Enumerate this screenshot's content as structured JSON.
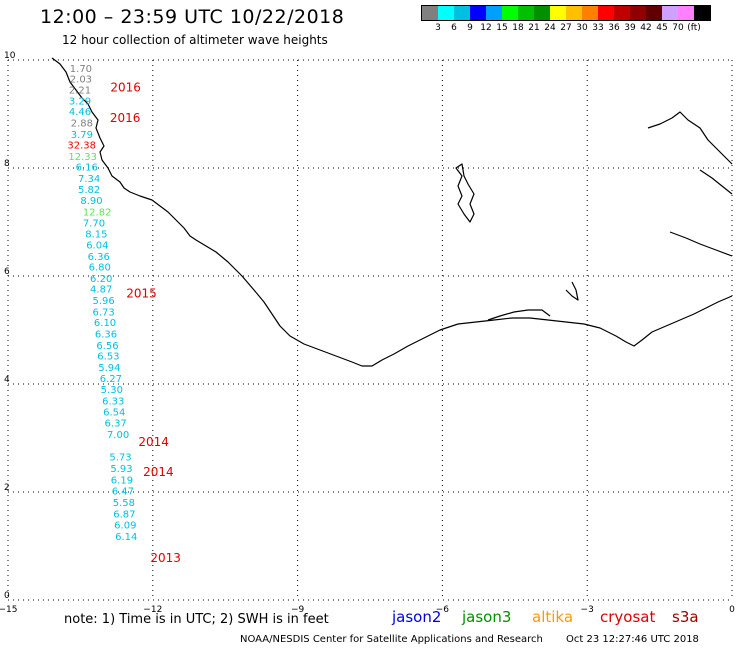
{
  "title": "12:00 – 23:59 UTC 10/22/2018",
  "subtitle": "12 hour collection of altimeter wave heights",
  "color_scale": {
    "colors": [
      "#808080",
      "#00ffff",
      "#00c0e0",
      "#0000ff",
      "#00a0ff",
      "#00ff00",
      "#00c000",
      "#009000",
      "#ffff00",
      "#ffc000",
      "#ff8000",
      "#ff0000",
      "#c00000",
      "#900000",
      "#600000",
      "#d0a0ff",
      "#ff80ff",
      "#000000"
    ],
    "labels": [
      "3",
      "6",
      "9",
      "12",
      "15",
      "18",
      "21",
      "24",
      "27",
      "30",
      "33",
      "36",
      "39",
      "42",
      "45",
      "70",
      "(ft)"
    ]
  },
  "axes": {
    "x_ticks": [
      "−15",
      "−12",
      "−9",
      "−6",
      "−3",
      "0"
    ],
    "y_ticks": [
      "0",
      "2",
      "4",
      "6",
      "8",
      "10"
    ],
    "xlim": [
      -15,
      0
    ],
    "ylim": [
      0,
      10
    ],
    "grid": "dotted"
  },
  "observations": [
    {
      "x": -13.72,
      "y": 9.78,
      "value": "1.70",
      "color": "#808080"
    },
    {
      "x": -13.72,
      "y": 9.58,
      "value": "2.03",
      "color": "#808080"
    },
    {
      "x": -13.74,
      "y": 9.38,
      "value": "2.21",
      "color": "#808080"
    },
    {
      "x": -13.74,
      "y": 9.18,
      "value": "3.29",
      "color": "#00c0e0"
    },
    {
      "x": -13.74,
      "y": 8.98,
      "value": "4.46",
      "color": "#00c0e0"
    },
    {
      "x": -13.7,
      "y": 8.77,
      "value": "2.88",
      "color": "#808080"
    },
    {
      "x": -13.7,
      "y": 8.56,
      "value": "3.79",
      "color": "#00c0e0"
    },
    {
      "x": -13.77,
      "y": 8.36,
      "value": "32.38",
      "color": "#ff0000"
    },
    {
      "x": -13.75,
      "y": 8.15,
      "value": "12.33",
      "color": "#60e060"
    },
    {
      "x": -13.6,
      "y": 7.95,
      "value": "6.16",
      "color": "#00c0e0"
    },
    {
      "x": -13.55,
      "y": 7.74,
      "value": "7.34",
      "color": "#00c0e0"
    },
    {
      "x": -13.55,
      "y": 7.54,
      "value": "5.82",
      "color": "#00c0e0"
    },
    {
      "x": -13.5,
      "y": 7.33,
      "value": "8.90",
      "color": "#00c0e0"
    },
    {
      "x": -13.45,
      "y": 7.12,
      "value": "12.82",
      "color": "#60e060"
    },
    {
      "x": -13.45,
      "y": 6.92,
      "value": "7.70",
      "color": "#00c0e0"
    },
    {
      "x": -13.4,
      "y": 6.71,
      "value": "8.15",
      "color": "#00c0e0"
    },
    {
      "x": -13.38,
      "y": 6.51,
      "value": "6.04",
      "color": "#00c0e0"
    },
    {
      "x": -13.35,
      "y": 6.3,
      "value": "6.36",
      "color": "#00c0e0"
    },
    {
      "x": -13.33,
      "y": 6.1,
      "value": "6.80",
      "color": "#00c0e0"
    },
    {
      "x": -13.3,
      "y": 5.89,
      "value": "6.20",
      "color": "#00c0e0"
    },
    {
      "x": -13.3,
      "y": 5.69,
      "value": "4.87",
      "color": "#00c0e0"
    },
    {
      "x": -13.25,
      "y": 5.48,
      "value": "5.96",
      "color": "#00c0e0"
    },
    {
      "x": -13.25,
      "y": 5.27,
      "value": "6.73",
      "color": "#00c0e0"
    },
    {
      "x": -13.22,
      "y": 5.07,
      "value": "6.10",
      "color": "#00c0e0"
    },
    {
      "x": -13.2,
      "y": 4.86,
      "value": "6.36",
      "color": "#00c0e0"
    },
    {
      "x": -13.17,
      "y": 4.65,
      "value": "6.56",
      "color": "#00c0e0"
    },
    {
      "x": -13.15,
      "y": 4.45,
      "value": "6.53",
      "color": "#00c0e0"
    },
    {
      "x": -13.13,
      "y": 4.24,
      "value": "5.94",
      "color": "#00c0e0"
    },
    {
      "x": -13.1,
      "y": 4.04,
      "value": "6.27",
      "color": "#00c0e0"
    },
    {
      "x": -13.08,
      "y": 3.83,
      "value": "5.30",
      "color": "#00c0e0"
    },
    {
      "x": -13.05,
      "y": 3.62,
      "value": "6.33",
      "color": "#00c0e0"
    },
    {
      "x": -13.03,
      "y": 3.42,
      "value": "6.54",
      "color": "#00c0e0"
    },
    {
      "x": -13.0,
      "y": 3.21,
      "value": "6.37",
      "color": "#00c0e0"
    },
    {
      "x": -12.95,
      "y": 3.0,
      "value": "7.00",
      "color": "#00c0e0"
    },
    {
      "x": -12.9,
      "y": 2.58,
      "value": "5.73",
      "color": "#00c0e0"
    },
    {
      "x": -12.88,
      "y": 2.37,
      "value": "5.93",
      "color": "#00c0e0"
    },
    {
      "x": -12.87,
      "y": 2.16,
      "value": "6.19",
      "color": "#00c0e0"
    },
    {
      "x": -12.85,
      "y": 1.95,
      "value": "6.47",
      "color": "#00c0e0"
    },
    {
      "x": -12.83,
      "y": 1.74,
      "value": "5.58",
      "color": "#00c0e0"
    },
    {
      "x": -12.82,
      "y": 1.53,
      "value": "6.87",
      "color": "#00c0e0"
    },
    {
      "x": -12.8,
      "y": 1.32,
      "value": "6.09",
      "color": "#00c0e0"
    },
    {
      "x": -12.78,
      "y": 1.11,
      "value": "6.14",
      "color": "#00c0e0"
    }
  ],
  "pass_labels": [
    {
      "x": -12.88,
      "y": 9.42,
      "text": "2016"
    },
    {
      "x": -12.89,
      "y": 8.85,
      "text": "2016"
    },
    {
      "x": -12.55,
      "y": 5.6,
      "text": "2015"
    },
    {
      "x": -12.3,
      "y": 2.85,
      "text": "2014"
    },
    {
      "x": -12.2,
      "y": 2.3,
      "text": "2014"
    },
    {
      "x": -12.05,
      "y": 0.7,
      "text": "2013"
    }
  ],
  "pass_label_color": "#e00000",
  "coastline_color": "#000000",
  "note": "note:  1) Time is in UTC;  2) SWH is in feet",
  "legend": [
    {
      "name": "jason2",
      "color": "#0000dd"
    },
    {
      "name": "jason3",
      "color": "#009000"
    },
    {
      "name": "altika",
      "color": "#ff9900"
    },
    {
      "name": "cryosat",
      "color": "#dd0000"
    },
    {
      "name": "s3a",
      "color": "#990000"
    }
  ],
  "credit": "NOAA/NESDIS Center for Satellite Applications and Research",
  "timestamp": "Oct 23 12:27:46 UTC 2018"
}
